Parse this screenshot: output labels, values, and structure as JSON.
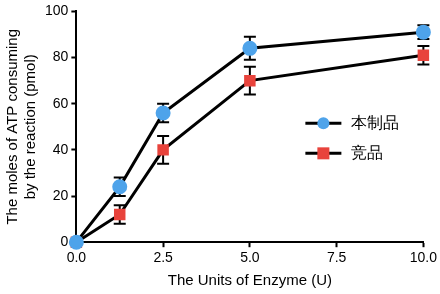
{
  "chart_data": {
    "type": "line",
    "xlabel": "The Units of Enzyme (U)",
    "ylabel": [
      "The moles of ATP consuming",
      "by the reaction (pmol)"
    ],
    "x": [
      0,
      1.25,
      2.5,
      5,
      10
    ],
    "series": [
      {
        "name": "本制品",
        "color": "#4ea3ea",
        "marker": "circle",
        "values": [
          0,
          24,
          56,
          84,
          91
        ],
        "errors": [
          0,
          4,
          4,
          5,
          3
        ]
      },
      {
        "name": "竞品",
        "color": "#e8433c",
        "marker": "square",
        "values": [
          0,
          12,
          40,
          70,
          81
        ],
        "errors": [
          0,
          4,
          6,
          6,
          4
        ]
      }
    ],
    "xlim": [
      0,
      10
    ],
    "xticks": [
      {
        "value": 0,
        "label": "0.0"
      },
      2.5,
      {
        "value": 5,
        "label": "5.0"
      },
      7.5,
      {
        "value": 10,
        "label": "10.0"
      }
    ],
    "ylim": [
      0,
      100
    ],
    "yticks": [
      0,
      20,
      40,
      60,
      80,
      100
    ],
    "grid": false,
    "legend": "right"
  }
}
